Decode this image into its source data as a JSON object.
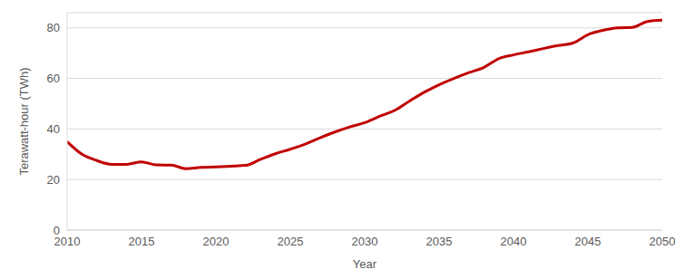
{
  "chart_data": {
    "type": "line",
    "x_label": "Year",
    "y_label": "Terawatt-hour (TWh)",
    "x": [
      2010,
      2011,
      2012,
      2013,
      2014,
      2015,
      2016,
      2017,
      2018,
      2019,
      2020,
      2021,
      2022,
      2023,
      2024,
      2025,
      2026,
      2027,
      2028,
      2029,
      2030,
      2031,
      2032,
      2033,
      2034,
      2035,
      2036,
      2037,
      2038,
      2039,
      2040,
      2041,
      2042,
      2043,
      2044,
      2045,
      2046,
      2047,
      2048,
      2049,
      2050
    ],
    "values": [
      35,
      30,
      27.5,
      26,
      26,
      27,
      25.8,
      25.7,
      24.3,
      24.8,
      25,
      25.3,
      25.6,
      28,
      30.2,
      32,
      34,
      36.5,
      38.8,
      40.8,
      42.5,
      45,
      47.3,
      51,
      54.5,
      57.5,
      60,
      62.3,
      64.3,
      67.8,
      69.3,
      70.5,
      71.8,
      73,
      74,
      77.3,
      79,
      80,
      80.2,
      82.5,
      83
    ],
    "color": "#c00000",
    "xlim": [
      2010,
      2050
    ],
    "xticks": [
      2010,
      2015,
      2020,
      2025,
      2030,
      2035,
      2040,
      2045,
      2050
    ],
    "ylim": [
      0,
      86
    ],
    "yticks": [
      0,
      20,
      40,
      60,
      80
    ],
    "grid": true
  }
}
